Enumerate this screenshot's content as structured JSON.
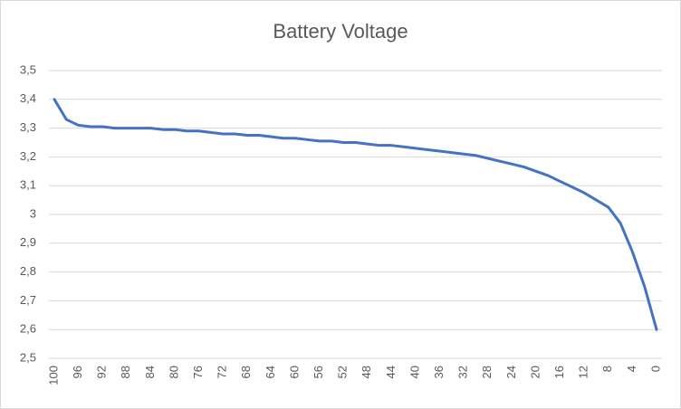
{
  "chart_data": {
    "type": "line",
    "title": "Battery Voltage",
    "categories": [
      "100",
      null,
      "96",
      null,
      "92",
      null,
      "88",
      null,
      "84",
      null,
      "80",
      null,
      "76",
      null,
      "72",
      null,
      "68",
      null,
      "64",
      null,
      "60",
      null,
      "56",
      null,
      "52",
      null,
      "48",
      null,
      "44",
      null,
      "40",
      null,
      "36",
      null,
      "32",
      null,
      "28",
      null,
      "24",
      null,
      "20",
      null,
      "16",
      null,
      "12",
      null,
      "8",
      null,
      "4",
      null,
      "0"
    ],
    "values": [
      3.4,
      3.33,
      3.31,
      3.305,
      3.305,
      3.3,
      3.3,
      3.3,
      3.3,
      3.295,
      3.295,
      3.29,
      3.29,
      3.285,
      3.28,
      3.28,
      3.275,
      3.275,
      3.27,
      3.265,
      3.265,
      3.26,
      3.255,
      3.255,
      3.25,
      3.25,
      3.245,
      3.24,
      3.24,
      3.235,
      3.23,
      3.225,
      3.22,
      3.215,
      3.21,
      3.205,
      3.195,
      3.185,
      3.175,
      3.165,
      3.15,
      3.135,
      3.115,
      3.095,
      3.075,
      3.05,
      3.025,
      2.97,
      2.87,
      2.75,
      2.6
    ],
    "color": "#4472c4",
    "ylim": [
      2.5,
      3.5
    ],
    "yticks": [
      {
        "value": 2.5,
        "label": "2,5"
      },
      {
        "value": 2.6,
        "label": "2,6"
      },
      {
        "value": 2.7,
        "label": "2,7"
      },
      {
        "value": 2.8,
        "label": "2,8"
      },
      {
        "value": 2.9,
        "label": "2,9"
      },
      3,
      {
        "value": 3.1,
        "label": "3,1"
      },
      {
        "value": 3.2,
        "label": "3,2"
      },
      {
        "value": 3.3,
        "label": "3,3"
      },
      {
        "value": 3.4,
        "label": "3,4"
      },
      {
        "value": 3.5,
        "label": "3,5"
      }
    ],
    "grid": true
  }
}
